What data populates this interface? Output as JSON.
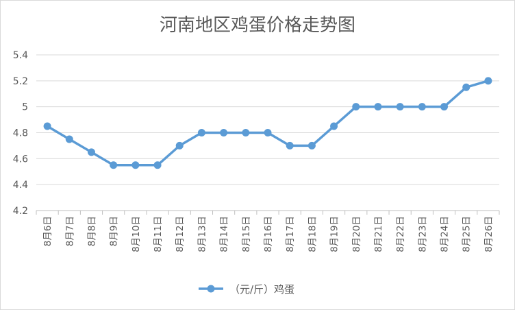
{
  "chart_data": {
    "type": "line",
    "title": "河南地区鸡蛋价格走势图",
    "categories": [
      "8月6日",
      "8月7日",
      "8月8日",
      "8月9日",
      "8月10日",
      "8月11日",
      "8月12日",
      "8月13日",
      "8月14日",
      "8月15日",
      "8月16日",
      "8月17日",
      "8月18日",
      "8月19日",
      "8月20日",
      "8月21日",
      "8月22日",
      "8月23日",
      "8月24日",
      "8月25日",
      "8月26日"
    ],
    "series": [
      {
        "name": "（元/斤）鸡蛋",
        "values": [
          4.85,
          4.75,
          4.65,
          4.55,
          4.55,
          4.55,
          4.7,
          4.8,
          4.8,
          4.8,
          4.8,
          4.7,
          4.7,
          4.85,
          5.0,
          5.0,
          5.0,
          5.0,
          5.0,
          5.15,
          5.2
        ],
        "color": "#5b9bd5"
      }
    ],
    "yticks": [
      "4.2",
      "4.4",
      "4.6",
      "4.8",
      "5",
      "5.2",
      "5.4"
    ],
    "ylim": [
      4.2,
      5.4
    ],
    "xlabel": "",
    "ylabel": "",
    "grid": true,
    "legend_position": "bottom"
  }
}
